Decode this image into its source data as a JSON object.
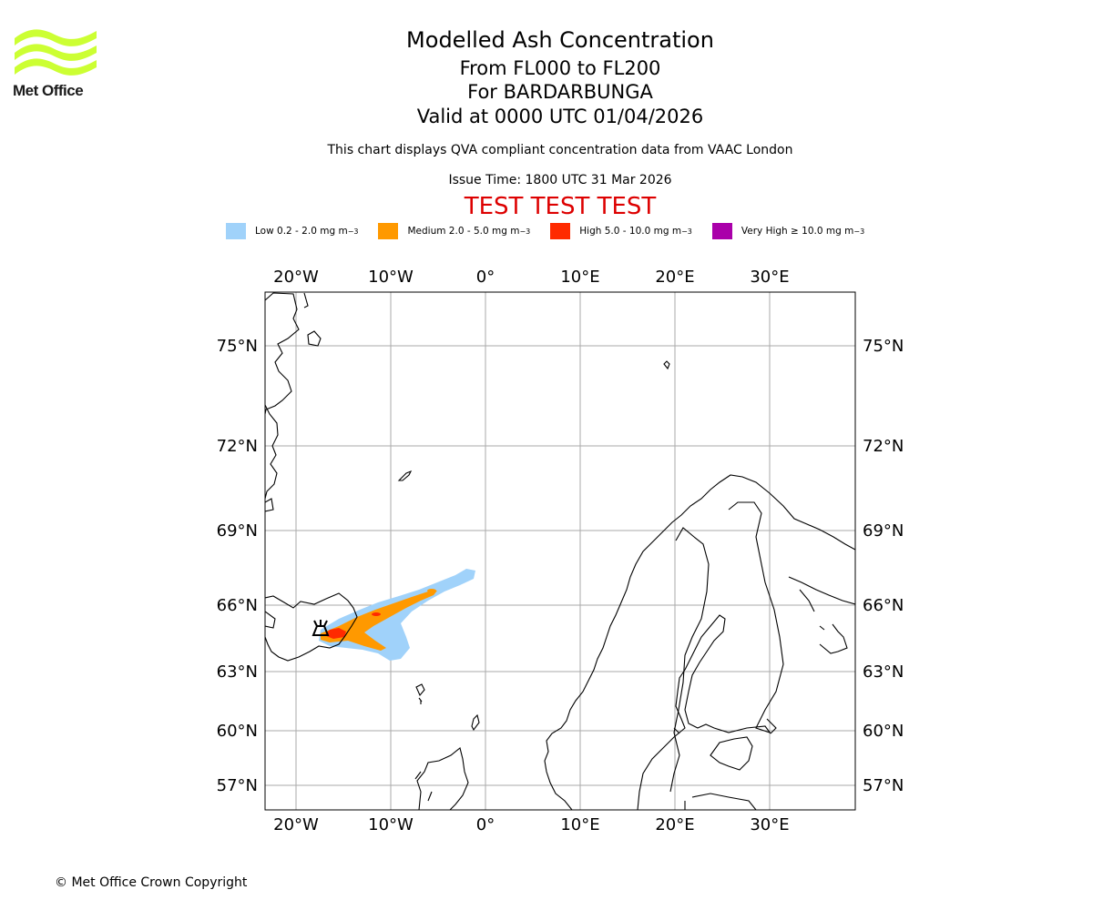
{
  "brand": {
    "name": "Met Office",
    "color": "#ccff33"
  },
  "header": {
    "title": "Modelled Ash Concentration",
    "levels": "From FL000 to FL200",
    "volcano": "For BARDARBUNGA",
    "valid": "Valid at 0000 UTC 01/04/2026",
    "compliance": "This chart displays QVA compliant concentration data from VAAC London",
    "issue_time": "Issue Time: 1800 UTC 31 Mar 2026",
    "test_banner": "TEST TEST TEST"
  },
  "legend": [
    {
      "label": "Low 0.2 - 2.0 mg m",
      "unit_sup": "−3",
      "color": "#a0d2fa"
    },
    {
      "label": "Medium 2.0 - 5.0 mg m",
      "unit_sup": "−3",
      "color": "#ff9900"
    },
    {
      "label": "High 5.0 - 10.0 mg m",
      "unit_sup": "−3",
      "color": "#ff2a00"
    },
    {
      "label": "Very High ≥ 10.0 mg m",
      "unit_sup": "−3",
      "color": "#aa00aa"
    }
  ],
  "map": {
    "lon_labels": [
      "20°W",
      "10°W",
      "0°",
      "10°E",
      "20°E",
      "30°E"
    ],
    "lat_labels": [
      "75°N",
      "72°N",
      "69°N",
      "66°N",
      "63°N",
      "60°N",
      "57°N"
    ],
    "grid_color": "#aaaaaa",
    "coast_color": "#000000"
  },
  "footer": {
    "copyright": "© Met Office Crown Copyright"
  }
}
